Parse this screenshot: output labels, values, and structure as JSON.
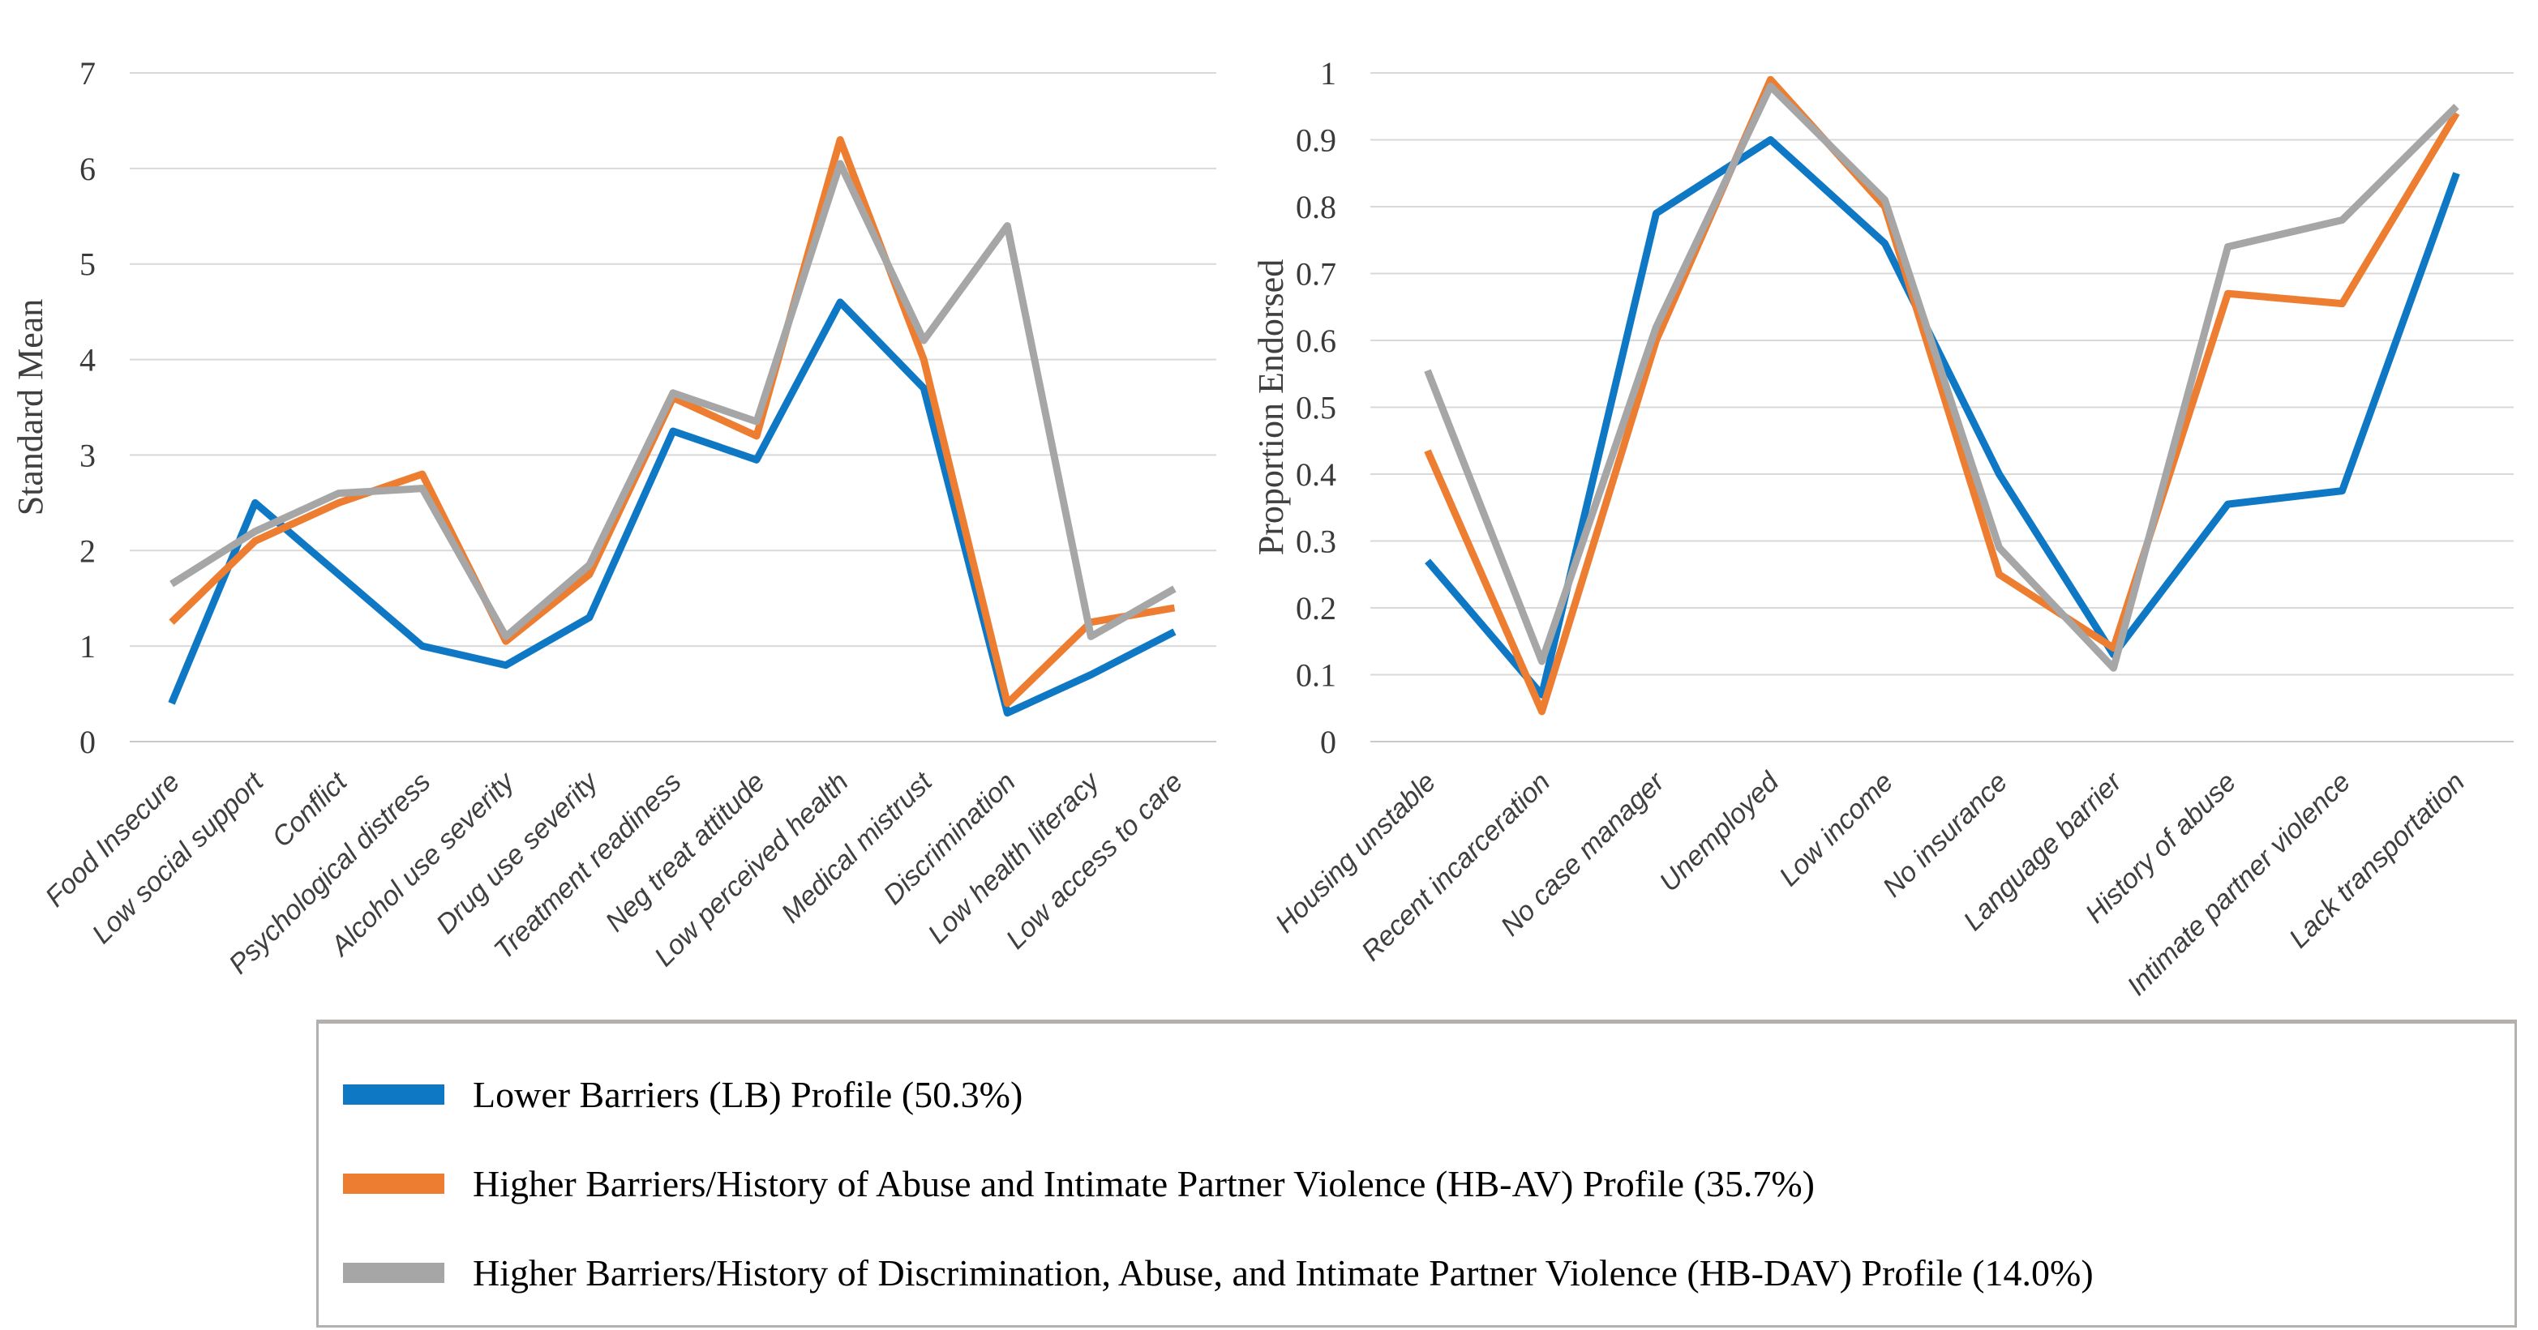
{
  "figure": {
    "background": "#ffffff",
    "gridline_color": "#d9d9d9",
    "axis_line_color": "#c9c9c9"
  },
  "chart_data": [
    {
      "type": "line",
      "title": "",
      "xlabel": "",
      "ylabel": "Standard Mean",
      "ylim": [
        0,
        7
      ],
      "ytick_step": 1,
      "grid": true,
      "legend_position": "bottom-shared",
      "categories": [
        "Food Insecure",
        "Low social support",
        "Conflict",
        "Psychological distress",
        "Alcohol use severity",
        "Drug use severity",
        "Treatment readiness",
        "Neg treat attitude",
        "Low perceived health",
        "Medical mistrust",
        "Discrimination",
        "Low health literacy",
        "Low access to care"
      ],
      "series": [
        {
          "name": "Lower Barriers (LB) Profile (50.3%)",
          "color": "#0f78c4",
          "values": [
            0.4,
            2.5,
            1.75,
            1.0,
            0.8,
            1.3,
            3.25,
            2.95,
            4.6,
            3.7,
            0.3,
            0.7,
            1.15
          ]
        },
        {
          "name": "Higher Barriers/History of Abuse and Intimate Partner Violence (HB-AV) Profile (35.7%)",
          "color": "#ed7d31",
          "values": [
            1.25,
            2.1,
            2.5,
            2.8,
            1.05,
            1.75,
            3.6,
            3.2,
            6.3,
            4.0,
            0.4,
            1.25,
            1.4
          ]
        },
        {
          "name": "Higher Barriers/History of Discrimination, Abuse, and Intimate Partner Violence (HB-DAV) Profile (14.0%)",
          "color": "#a6a6a6",
          "values": [
            1.65,
            2.2,
            2.6,
            2.65,
            1.1,
            1.85,
            3.65,
            3.35,
            6.05,
            4.2,
            5.4,
            1.1,
            1.6
          ]
        }
      ]
    },
    {
      "type": "line",
      "title": "",
      "xlabel": "",
      "ylabel": "Proportion Endorsed",
      "ylim": [
        0,
        1
      ],
      "ytick_step": 0.1,
      "grid": true,
      "legend_position": "bottom-shared",
      "categories": [
        "Housing unstable",
        "Recent incarceration",
        "No case manager",
        "Unemployed",
        "Low income",
        "No insurance",
        "Language barrier",
        "History of abuse",
        "Intimate partner violence",
        "Lack transportation"
      ],
      "series": [
        {
          "name": "Lower Barriers (LB) Profile (50.3%)",
          "color": "#0f78c4",
          "values": [
            0.27,
            0.07,
            0.79,
            0.9,
            0.745,
            0.4,
            0.13,
            0.355,
            0.375,
            0.85
          ]
        },
        {
          "name": "Higher Barriers/History of Abuse and Intimate Partner Violence (HB-AV) Profile (35.7%)",
          "color": "#ed7d31",
          "values": [
            0.435,
            0.045,
            0.6,
            0.99,
            0.8,
            0.25,
            0.14,
            0.67,
            0.655,
            0.94
          ]
        },
        {
          "name": "Higher Barriers/History of Discrimination, Abuse, and Intimate Partner Violence (HB-DAV) Profile (14.0%)",
          "color": "#a6a6a6",
          "values": [
            0.555,
            0.12,
            0.62,
            0.98,
            0.81,
            0.29,
            0.11,
            0.74,
            0.78,
            0.95
          ]
        }
      ]
    }
  ],
  "legend": {
    "items": [
      {
        "label": "Lower Barriers (LB) Profile (50.3%)",
        "color": "#0f78c4"
      },
      {
        "label": "Higher Barriers/History of Abuse and Intimate Partner Violence (HB-AV) Profile  (35.7%)",
        "color": "#ed7d31"
      },
      {
        "label": "Higher Barriers/History of Discrimination, Abuse, and Intimate Partner Violence (HB-DAV) Profile (14.0%)",
        "color": "#a6a6a6"
      }
    ]
  }
}
